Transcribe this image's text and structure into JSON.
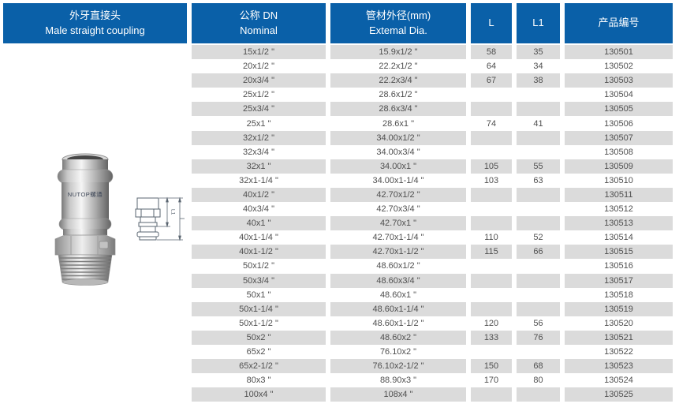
{
  "product": {
    "title_zh": "外牙直接头",
    "title_en": "Male straight coupling"
  },
  "columns": {
    "nominal_zh": "公称 DN",
    "nominal_en": "Nominal",
    "external_zh": "管材外径(mm)",
    "external_en": "Extemal Dia.",
    "l": "L",
    "l1": "L1",
    "code_zh": "产品编号"
  },
  "rows": [
    [
      "15x1/2 \"",
      "15.9x1/2 \"",
      "58",
      "35",
      "130501"
    ],
    [
      "20x1/2 \"",
      "22.2x1/2 \"",
      "64",
      "34",
      "130502"
    ],
    [
      "20x3/4 \"",
      "22.2x3/4 \"",
      "67",
      "38",
      "130503"
    ],
    [
      "25x1/2 \"",
      "28.6x1/2 \"",
      "",
      "",
      "130504"
    ],
    [
      "25x3/4 \"",
      "28.6x3/4 \"",
      "",
      "",
      "130505"
    ],
    [
      "25x1 \"",
      "28.6x1 \"",
      "74",
      "41",
      "130506"
    ],
    [
      "32x1/2 \"",
      "34.00x1/2 \"",
      "",
      "",
      "130507"
    ],
    [
      "32x3/4 \"",
      "34.00x3/4 \"",
      "",
      "",
      "130508"
    ],
    [
      "32x1 \"",
      "34.00x1 \"",
      "105",
      "55",
      "130509"
    ],
    [
      "32x1-1/4 \"",
      "34.00x1-1/4 \"",
      "103",
      "63",
      "130510"
    ],
    [
      "40x1/2 \"",
      "42.70x1/2 \"",
      "",
      "",
      "130511"
    ],
    [
      "40x3/4 \"",
      "42.70x3/4 \"",
      "",
      "",
      "130512"
    ],
    [
      "40x1 \"",
      "42.70x1 \"",
      "",
      "",
      "130513"
    ],
    [
      "40x1-1/4 \"",
      "42.70x1-1/4 \"",
      "110",
      "52",
      "130514"
    ],
    [
      "40x1-1/2 \"",
      "42.70x1-1/2 \"",
      "115",
      "66",
      "130515"
    ],
    [
      "50x1/2 \"",
      "48.60x1/2 \"",
      "",
      "",
      "130516"
    ],
    [
      "50x3/4 \"",
      "48.60x3/4 \"",
      "",
      "",
      "130517"
    ],
    [
      "50x1 \"",
      "48.60x1 \"",
      "",
      "",
      "130518"
    ],
    [
      "50x1-1/4 \"",
      "48.60x1-1/4 \"",
      "",
      "",
      "130519"
    ],
    [
      "50x1-1/2 \"",
      "48.60x1-1/2 \"",
      "120",
      "56",
      "130520"
    ],
    [
      "50x2 \"",
      "48.60x2 \"",
      "133",
      "76",
      "130521"
    ],
    [
      "65x2 \"",
      "76.10x2 \"",
      "",
      "",
      "130522"
    ],
    [
      "65x2-1/2 \"",
      "76.10x2-1/2 \"",
      "150",
      "68",
      "130523"
    ],
    [
      "80x3 \"",
      "88.90x3 \"",
      "170",
      "80",
      "130524"
    ],
    [
      "100x4 \"",
      "108x4 \"",
      "",
      "",
      "130525"
    ]
  ],
  "image": {
    "brand_text": "NUTOP螺通",
    "diagram_label_l1": "L1"
  },
  "colors": {
    "header_blue": "#0a60a8",
    "row_stripe": "#dbdbdb",
    "cell_text": "#4f4f4f"
  }
}
